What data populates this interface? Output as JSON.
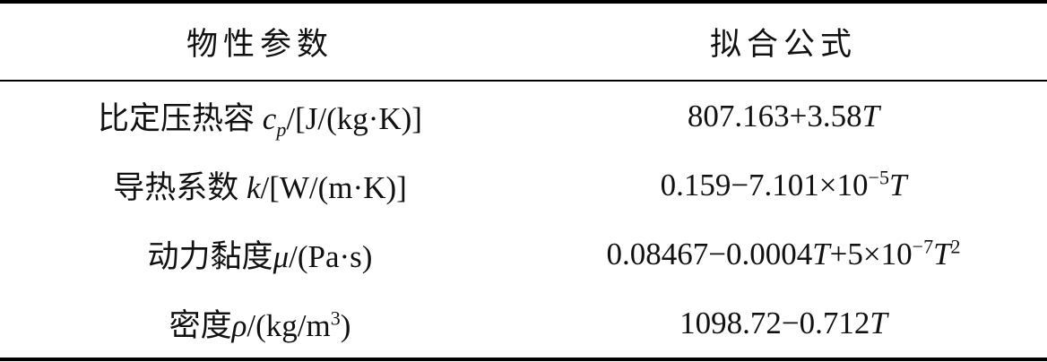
{
  "table": {
    "header": [
      "物性参数",
      "拟合公式"
    ],
    "rows": [
      [
        [
          "比定压热容 ",
          "c",
          "p",
          "/[J/(kg·K)]"
        ],
        [
          "807.163+3.58",
          "T"
        ]
      ],
      [
        [
          "导热系数 ",
          "k",
          "/[W/(m·K)]"
        ],
        [
          "0.159−7.101×10",
          "−5",
          "T"
        ]
      ],
      [
        [
          "动力黏度",
          "μ",
          "/(Pa·s)"
        ],
        [
          "0.08467−0.0004",
          "T",
          "+5×10",
          "−7",
          "T",
          "2"
        ]
      ],
      [
        [
          "密度",
          "ρ",
          "/(kg/m",
          "3",
          ")"
        ],
        [
          "1098.72−0.712",
          "T"
        ]
      ]
    ]
  }
}
